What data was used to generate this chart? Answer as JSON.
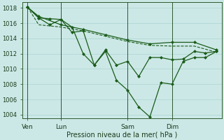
{
  "bg_color": "#cce8e6",
  "grid_color": "#b0d8d5",
  "line_color": "#1a5c1a",
  "marker_color": "#1a5c1a",
  "xlabel": "Pression niveau de la mer( hPa )",
  "ylim": [
    1003.5,
    1018.8
  ],
  "yticks": [
    1004,
    1006,
    1008,
    1010,
    1012,
    1014,
    1016,
    1018
  ],
  "num_xcols": 18,
  "xtick_labels": [
    "Ven",
    "Lun",
    "Sam",
    "Dim"
  ],
  "xtick_positions": [
    0.5,
    3.5,
    9.5,
    13.5
  ],
  "vline_positions": [
    0.5,
    3.5,
    9.5,
    13.5
  ],
  "series": [
    {
      "x": [
        0.5,
        1.5,
        3.5,
        5.5,
        7.5,
        9.5,
        11.5,
        13.5,
        15.5,
        17.5
      ],
      "y": [
        1018.1,
        1016.9,
        1015.8,
        1015.2,
        1014.5,
        1013.8,
        1013.3,
        1013.5,
        1013.5,
        1012.5
      ],
      "linestyle": "-",
      "marker": "D",
      "ms": 2.0,
      "lw": 0.9
    },
    {
      "x": [
        0.5,
        1.5,
        3.5,
        5.5,
        7.5,
        9.5,
        11.5,
        13.5,
        15.5,
        17.5
      ],
      "y": [
        1018.1,
        1015.8,
        1015.5,
        1015.0,
        1014.3,
        1013.6,
        1013.1,
        1013.0,
        1013.0,
        1012.2
      ],
      "linestyle": "--",
      "marker": null,
      "ms": 0,
      "lw": 0.8
    },
    {
      "x": [
        0.5,
        1.5,
        2.5,
        3.5,
        4.5,
        5.5,
        6.5,
        7.5,
        8.5,
        9.5,
        10.5,
        11.5,
        12.5,
        13.5,
        14.5,
        15.5,
        16.5,
        17.5
      ],
      "y": [
        1018.1,
        1016.7,
        1015.8,
        1016.5,
        1015.5,
        1012.0,
        1010.5,
        1012.5,
        1010.5,
        1011.0,
        1009.0,
        1011.5,
        1011.5,
        1011.2,
        1011.3,
        1012.3,
        1012.1,
        1012.3
      ],
      "linestyle": "-",
      "marker": "D",
      "ms": 2.0,
      "lw": 0.9
    },
    {
      "x": [
        0.5,
        1.5,
        2.5,
        3.5,
        4.5,
        5.5,
        6.5,
        7.5,
        8.5,
        9.5,
        10.5,
        11.5,
        12.5,
        13.5,
        14.5,
        15.5,
        16.5,
        17.5
      ],
      "y": [
        1018.1,
        1016.7,
        1016.6,
        1016.5,
        1014.8,
        1015.0,
        1010.5,
        1012.3,
        1008.5,
        1007.2,
        1005.0,
        1003.7,
        1008.2,
        1008.0,
        1011.0,
        1011.5,
        1011.5,
        1012.3
      ],
      "linestyle": "-",
      "marker": "D",
      "ms": 2.0,
      "lw": 0.9
    }
  ]
}
